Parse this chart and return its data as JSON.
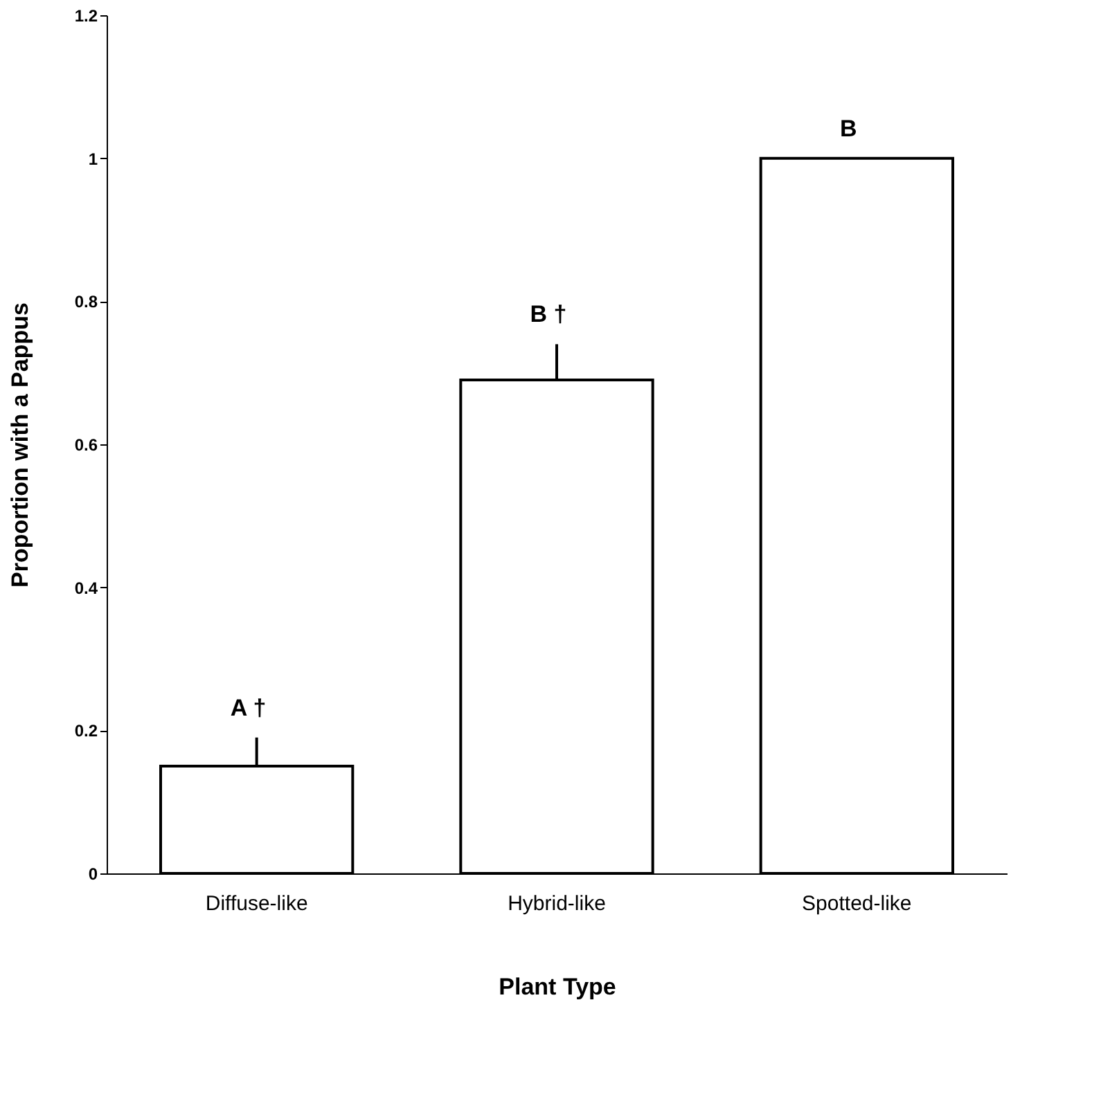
{
  "chart_data": {
    "type": "bar",
    "xlabel": "Plant Type",
    "ylabel": "Proportion with a Pappus",
    "categories": [
      "Diffuse-like",
      "Hybrid-like",
      "Spotted-like"
    ],
    "values": [
      0.15,
      0.69,
      1.0
    ],
    "color": "#ffffff",
    "errors": [
      [
        0.15,
        0.19
      ],
      [
        0.69,
        0.74
      ],
      null
    ],
    "ylim": [
      0,
      1.2
    ],
    "yticks": [
      0,
      0.2,
      0.4,
      0.6,
      0.8,
      1,
      1.2
    ],
    "grid": false,
    "annotations": [
      {
        "text": "A †",
        "x": "Diffuse-like",
        "y": 0.19
      },
      {
        "text": "B †",
        "x": "Hybrid-like",
        "y": 0.74
      },
      {
        "text": "B",
        "x": "Spotted-like",
        "y": 1.0
      }
    ]
  }
}
